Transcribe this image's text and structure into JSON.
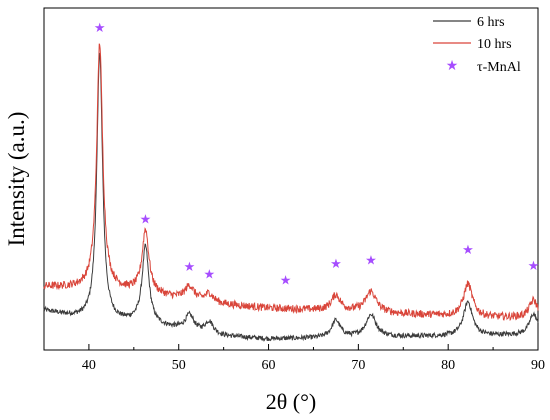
{
  "chart_data": {
    "type": "line",
    "xlabel": "2θ (°)",
    "ylabel": "Intensity (a.u.)",
    "xlim": [
      35,
      90
    ],
    "x_ticks": [
      40,
      50,
      60,
      70,
      80,
      90
    ],
    "ylim": [
      0,
      100
    ],
    "y_tick_labels": false,
    "grid": false,
    "legend_position": "top-right",
    "series": [
      {
        "name": "6 hrs",
        "color": "#3c3c3c",
        "baseline": [
          [
            35,
            11.5
          ],
          [
            41,
            8
          ],
          [
            45,
            8
          ],
          [
            50,
            6
          ],
          [
            55,
            4
          ],
          [
            60,
            3.2
          ],
          [
            65,
            3.4
          ],
          [
            70,
            3.7
          ],
          [
            75,
            3.9
          ],
          [
            80,
            4
          ],
          [
            85,
            4.2
          ],
          [
            90,
            4.5
          ]
        ],
        "peaks": [
          {
            "x": 41.2,
            "height": 79,
            "width": 0.38
          },
          {
            "x": 46.3,
            "height": 22.5,
            "width": 0.45
          },
          {
            "x": 51.2,
            "height": 4.5,
            "width": 0.6
          },
          {
            "x": 53.4,
            "height": 3.5,
            "width": 0.55
          },
          {
            "x": 67.5,
            "height": 5,
            "width": 0.6
          },
          {
            "x": 71.4,
            "height": 6.5,
            "width": 0.7
          },
          {
            "x": 82.2,
            "height": 10,
            "width": 0.6
          },
          {
            "x": 89.5,
            "height": 6,
            "width": 0.55
          }
        ],
        "noise": 0.7
      },
      {
        "name": "10 hrs",
        "color": "#d9453a",
        "baseline": [
          [
            35,
            18.5
          ],
          [
            41,
            17.8
          ],
          [
            45,
            17
          ],
          [
            50,
            15
          ],
          [
            55,
            13.3
          ],
          [
            60,
            12.2
          ],
          [
            65,
            11.7
          ],
          [
            70,
            11.3
          ],
          [
            75,
            10.5
          ],
          [
            80,
            10
          ],
          [
            85,
            9.5
          ],
          [
            90,
            9.5
          ]
        ],
        "peaks": [
          {
            "x": 41.2,
            "height": 72,
            "width": 0.4
          },
          {
            "x": 46.3,
            "height": 18.5,
            "width": 0.45
          },
          {
            "x": 51.2,
            "height": 4,
            "width": 0.6
          },
          {
            "x": 53.4,
            "height": 2.5,
            "width": 0.55
          },
          {
            "x": 67.5,
            "height": 4.5,
            "width": 0.6
          },
          {
            "x": 71.4,
            "height": 6,
            "width": 0.7
          },
          {
            "x": 82.2,
            "height": 9.5,
            "width": 0.6
          },
          {
            "x": 89.5,
            "height": 5,
            "width": 0.55
          }
        ],
        "noise": 1.1
      }
    ],
    "markers": {
      "name": "τ-MnAl",
      "symbol": "★",
      "color": "#a64dff",
      "points": [
        {
          "x": 41.2,
          "y": 94.5
        },
        {
          "x": 46.3,
          "y": 38.5
        },
        {
          "x": 51.2,
          "y": 24.5
        },
        {
          "x": 53.4,
          "y": 22.3
        },
        {
          "x": 61.9,
          "y": 20.6
        },
        {
          "x": 67.5,
          "y": 25.5
        },
        {
          "x": 71.4,
          "y": 26.5
        },
        {
          "x": 82.2,
          "y": 29.6
        },
        {
          "x": 89.5,
          "y": 24.8
        }
      ]
    }
  }
}
